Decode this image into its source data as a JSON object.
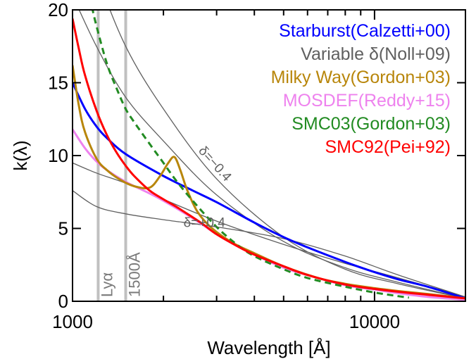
{
  "chart_data": {
    "type": "line",
    "xlabel": "Wavelength [Å]",
    "ylabel": "k(λ)",
    "xscale": "log",
    "xlim": [
      1000,
      20000
    ],
    "ylim": [
      0,
      20
    ],
    "xticks": [
      1000,
      10000
    ],
    "xtick_labels": [
      "1000",
      "10000"
    ],
    "yticks": [
      0,
      5,
      10,
      15,
      20
    ],
    "ytick_labels": [
      "0",
      "5",
      "10",
      "15",
      "20"
    ],
    "grid": false,
    "legend_position": "top-right",
    "vlines": [
      {
        "x": 1216,
        "label": "Lyα",
        "color": "#c0c0c0"
      },
      {
        "x": 1500,
        "label": "1500Å",
        "color": "#c0c0c0"
      }
    ],
    "annotations": [
      {
        "text": "δ=−0.4",
        "x": 2600,
        "y": 10.3
      },
      {
        "text": "δ=+0.4",
        "x": 2330,
        "y": 5.1
      }
    ],
    "legend": [
      {
        "text": "Starburst(Calzetti+00)",
        "color": "#0000ff"
      },
      {
        "text": "Variable δ(Noll+09)",
        "color": "#606060"
      },
      {
        "text": "Milky Way(Gordon+03)",
        "color": "#b8860b"
      },
      {
        "text": "MOSDEF(Reddy+15)",
        "color": "#ee82ee"
      },
      {
        "text": "SMC03(Gordon+03)",
        "color": "#228b22"
      },
      {
        "text": "SMC92(Pei+92)",
        "color": "#ff0000"
      }
    ],
    "series": [
      {
        "name": "Variable δ(Noll+09)",
        "color": "#606060",
        "width": 1.3,
        "dash": "",
        "x": [
          1000,
          1200,
          1500,
          2000,
          3000,
          5000,
          8000,
          12000,
          20000
        ],
        "y": [
          27.5,
          22.5,
          17.5,
          13.2,
          8.4,
          4.4,
          2.2,
          1.2,
          0.2
        ]
      },
      {
        "name": "Variable δ(Noll+09)",
        "color": "#606060",
        "width": 1.3,
        "dash": "",
        "x": [
          1000,
          1200,
          1500,
          2000,
          3000,
          5000,
          8000,
          12000,
          20000
        ],
        "y": [
          21.0,
          17.5,
          14.0,
          11.0,
          7.3,
          4.1,
          2.3,
          1.3,
          0.2
        ]
      },
      {
        "name": "Variable δ(Noll+09)",
        "color": "#606060",
        "width": 1.3,
        "dash": "",
        "x": [
          1000,
          1200,
          1500,
          2000,
          3000,
          5000,
          8000,
          12000,
          20000
        ],
        "y": [
          9.5,
          8.8,
          8.1,
          7.0,
          5.5,
          3.9,
          2.6,
          1.6,
          0.3
        ]
      },
      {
        "name": "Variable δ(Noll+09)",
        "color": "#606060",
        "width": 1.3,
        "dash": "",
        "x": [
          1000,
          1200,
          1500,
          2000,
          3000,
          5000,
          8000,
          12000,
          20000
        ],
        "y": [
          7.6,
          6.5,
          6.0,
          5.6,
          5.1,
          4.3,
          3.1,
          1.8,
          0.3
        ]
      },
      {
        "name": "Starburst(Calzetti+00)",
        "color": "#0000ff",
        "width": 3,
        "dash": "",
        "x": [
          1000,
          1100,
          1200,
          1300,
          1500,
          2000,
          2500,
          3000,
          4000,
          5000,
          6000,
          8000,
          10000,
          12000,
          15000,
          20000
        ],
        "y": [
          15.0,
          13.2,
          12.0,
          11.2,
          10.1,
          8.6,
          7.6,
          6.8,
          5.4,
          4.4,
          3.7,
          2.7,
          2.0,
          1.5,
          1.0,
          0.2
        ]
      },
      {
        "name": "MOSDEF(Reddy+15)",
        "color": "#ee82ee",
        "width": 3,
        "dash": "",
        "x": [
          1000,
          1100,
          1200,
          1300,
          1500,
          1800,
          2000,
          2500,
          3000,
          3500,
          4000,
          5000,
          6000,
          8000,
          10000,
          12000,
          15000,
          20000
        ],
        "y": [
          11.8,
          10.5,
          9.6,
          9.0,
          8.2,
          7.4,
          6.9,
          5.7,
          4.6,
          3.8,
          3.2,
          2.3,
          1.8,
          1.1,
          0.8,
          0.55,
          0.3,
          0.1
        ]
      },
      {
        "name": "Milky Way(Gordon+03)",
        "color": "#b8860b",
        "width": 3,
        "dash": "",
        "x": [
          1000,
          1050,
          1100,
          1200,
          1300,
          1450,
          1600,
          1800,
          1950,
          2075,
          2175,
          2275,
          2400,
          2600,
          2900,
          3400,
          4000,
          5000,
          6500,
          8000,
          10000,
          12000,
          15000,
          20000
        ],
        "y": [
          16.2,
          13.4,
          11.6,
          9.8,
          9.0,
          8.3,
          7.9,
          7.8,
          8.6,
          9.5,
          9.9,
          9.0,
          7.6,
          6.1,
          5.0,
          4.0,
          3.3,
          2.4,
          1.6,
          1.2,
          0.9,
          0.7,
          0.5,
          0.2
        ]
      },
      {
        "name": "SMC03(Gordon+03)",
        "color": "#228b22",
        "width": 3,
        "dash": "9,6",
        "x": [
          1160,
          1200,
          1300,
          1400,
          1500,
          1600,
          1800,
          2000,
          2200,
          2500,
          3000,
          3500,
          4000,
          5000,
          6000,
          8000,
          10000,
          12000,
          13000
        ],
        "y": [
          20.2,
          18.9,
          16.3,
          14.6,
          13.2,
          12.3,
          10.8,
          9.5,
          8.3,
          6.9,
          5.1,
          3.9,
          3.1,
          2.2,
          1.6,
          1.0,
          0.6,
          0.35,
          0.25
        ]
      },
      {
        "name": "SMC92(Pei+92)",
        "color": "#ff0000",
        "width": 3,
        "dash": "",
        "x": [
          1000,
          1050,
          1100,
          1200,
          1300,
          1400,
          1500,
          1600,
          1800,
          2000,
          2200,
          2400,
          2700,
          3000,
          3500,
          4000,
          5000,
          6000,
          8000,
          10000,
          12000,
          15000,
          20000
        ],
        "y": [
          19.4,
          17.3,
          15.5,
          13.1,
          11.4,
          10.2,
          9.3,
          8.6,
          7.6,
          7.0,
          6.5,
          6.0,
          5.3,
          4.6,
          3.8,
          3.2,
          2.4,
          1.8,
          1.15,
          0.85,
          0.65,
          0.45,
          0.2
        ]
      }
    ]
  }
}
